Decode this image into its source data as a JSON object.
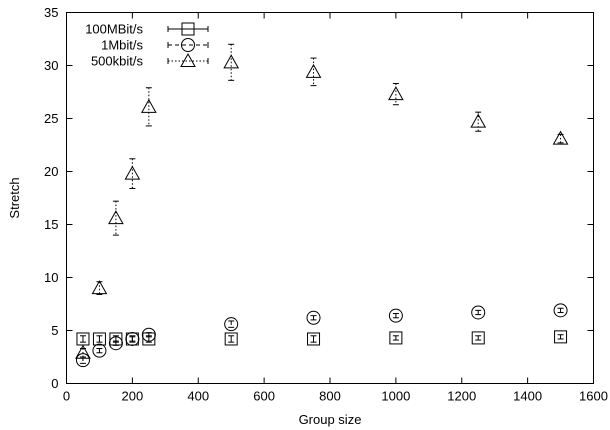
{
  "chart_data": {
    "type": "scatter",
    "title": "",
    "xlabel": "Group size",
    "ylabel": "Stretch",
    "xlim": [
      0,
      1600
    ],
    "ylim": [
      0,
      35
    ],
    "x_ticks": [
      0,
      200,
      400,
      600,
      800,
      1000,
      1200,
      1400,
      1600
    ],
    "y_ticks": [
      0,
      5,
      10,
      15,
      20,
      25,
      30,
      35
    ],
    "grid": false,
    "legend_position": "top-left",
    "series": [
      {
        "name": "100MBit/s",
        "marker": "square",
        "line_style": "solid",
        "points": [
          {
            "x": 50,
            "y": 4.2,
            "err": 0.3
          },
          {
            "x": 100,
            "y": 4.2,
            "err": 0.3
          },
          {
            "x": 150,
            "y": 4.2,
            "err": 0.3
          },
          {
            "x": 200,
            "y": 4.2,
            "err": 0.3
          },
          {
            "x": 250,
            "y": 4.2,
            "err": 0.3
          },
          {
            "x": 500,
            "y": 4.2,
            "err": 0.3
          },
          {
            "x": 750,
            "y": 4.2,
            "err": 0.3
          },
          {
            "x": 1000,
            "y": 4.3,
            "err": 0.2
          },
          {
            "x": 1250,
            "y": 4.3,
            "err": 0.2
          },
          {
            "x": 1500,
            "y": 4.4,
            "err": 0.2
          }
        ]
      },
      {
        "name": "1Mbit/s",
        "marker": "circle",
        "line_style": "dashed",
        "points": [
          {
            "x": 50,
            "y": 2.2,
            "err": 0.3
          },
          {
            "x": 100,
            "y": 3.1,
            "err": 0.2
          },
          {
            "x": 150,
            "y": 3.8,
            "err": 0.2
          },
          {
            "x": 200,
            "y": 4.2,
            "err": 0.2
          },
          {
            "x": 250,
            "y": 4.6,
            "err": 0.2
          },
          {
            "x": 500,
            "y": 5.6,
            "err": 0.3
          },
          {
            "x": 750,
            "y": 6.2,
            "err": 0.2
          },
          {
            "x": 1000,
            "y": 6.4,
            "err": 0.2
          },
          {
            "x": 1250,
            "y": 6.7,
            "err": 0.2
          },
          {
            "x": 1500,
            "y": 6.9,
            "err": 0.2
          }
        ]
      },
      {
        "name": "500kbit/s",
        "marker": "triangle",
        "line_style": "dotted",
        "points": [
          {
            "x": 50,
            "y": 2.9,
            "err": 0.4
          },
          {
            "x": 100,
            "y": 9.0,
            "err": 0.6
          },
          {
            "x": 150,
            "y": 15.6,
            "err": 1.6
          },
          {
            "x": 200,
            "y": 19.8,
            "err": 1.4
          },
          {
            "x": 250,
            "y": 26.1,
            "err": 1.8
          },
          {
            "x": 500,
            "y": 30.3,
            "err": 1.7
          },
          {
            "x": 750,
            "y": 29.4,
            "err": 1.3
          },
          {
            "x": 1000,
            "y": 27.3,
            "err": 1.0
          },
          {
            "x": 1250,
            "y": 24.7,
            "err": 0.9
          },
          {
            "x": 1500,
            "y": 23.1,
            "err": 0.4
          }
        ]
      }
    ]
  }
}
